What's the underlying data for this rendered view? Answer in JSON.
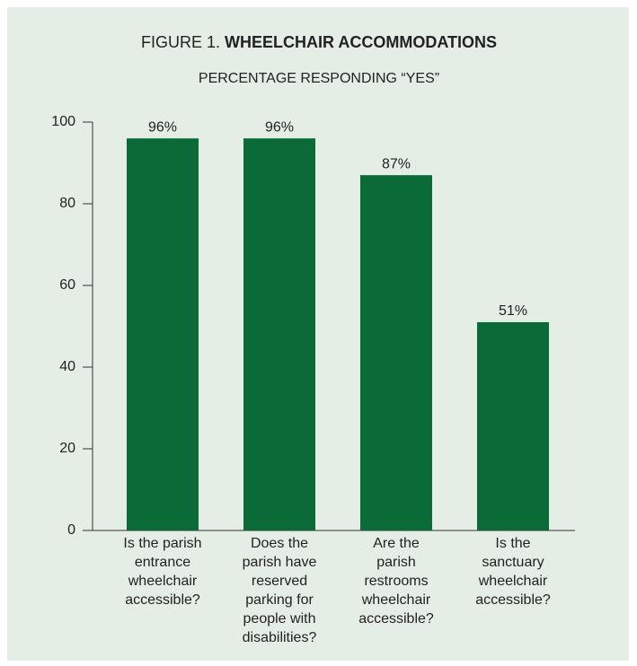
{
  "chart_data": {
    "type": "bar",
    "figure_label": "FIGURE 1.",
    "title": "WHEELCHAIR ACCOMMODATIONS",
    "subtitle": "PERCENTAGE RESPONDING “YES”",
    "categories": [
      "Is the parish\nentrance\nwheelchair\naccessible?",
      "Does the\nparish have\nreserved\nparking for\npeople with\ndisabilities?",
      "Are the\nparish\nrestrooms\nwheelchair\naccessible?",
      "Is the\nsanctuary\nwheelchair\naccessible?"
    ],
    "values": [
      96,
      96,
      87,
      51
    ],
    "value_labels": [
      "96%",
      "96%",
      "87%",
      "51%"
    ],
    "color": "#0b6b38",
    "ylim": [
      0,
      100
    ],
    "yticks": [
      0,
      20,
      40,
      60,
      80,
      100
    ],
    "grid": false
  }
}
